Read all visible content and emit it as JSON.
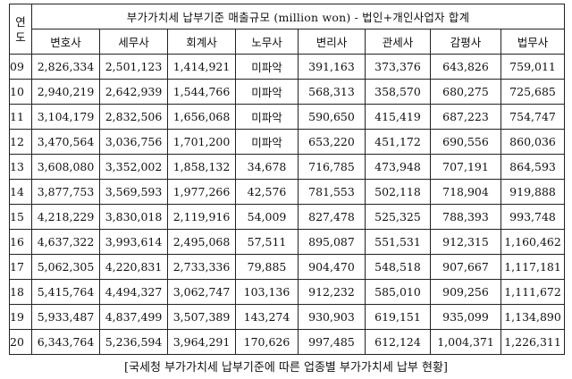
{
  "table": {
    "corner_label_1": "연",
    "corner_label_2": "도",
    "title": "부가가치세 납부기준 매출규모 (million won) - 법인+개인사업자 합계",
    "columns": [
      "변호사",
      "세무사",
      "회계사",
      "노무사",
      "변리사",
      "관세사",
      "감평사",
      "법무사"
    ],
    "rows": [
      {
        "year": "09",
        "values": [
          "2,826,334",
          "2,501,123",
          "1,414,921",
          "미파악",
          "391,163",
          "373,376",
          "643,826",
          "759,011"
        ]
      },
      {
        "year": "10",
        "values": [
          "2,940,219",
          "2,642,939",
          "1,544,766",
          "미파악",
          "568,313",
          "358,570",
          "680,275",
          "725,685"
        ]
      },
      {
        "year": "11",
        "values": [
          "3,104,179",
          "2,832,506",
          "1,656,068",
          "미파악",
          "590,650",
          "415,419",
          "687,223",
          "754,747"
        ]
      },
      {
        "year": "12",
        "values": [
          "3,470,564",
          "3,036,756",
          "1,701,200",
          "미파악",
          "653,220",
          "451,172",
          "690,556",
          "860,036"
        ]
      },
      {
        "year": "13",
        "values": [
          "3,608,080",
          "3,352,002",
          "1,858,132",
          "34,678",
          "716,785",
          "473,948",
          "707,191",
          "864,593"
        ]
      },
      {
        "year": "14",
        "values": [
          "3,877,753",
          "3,569,593",
          "1,977,266",
          "42,576",
          "781,553",
          "502,118",
          "718,904",
          "919,888"
        ]
      },
      {
        "year": "15",
        "values": [
          "4,218,229",
          "3,830,018",
          "2,119,916",
          "54,009",
          "827,478",
          "525,325",
          "788,393",
          "993,748"
        ]
      },
      {
        "year": "16",
        "values": [
          "4,637,322",
          "3,993,614",
          "2,495,068",
          "57,511",
          "895,087",
          "551,531",
          "912,315",
          "1,160,462"
        ]
      },
      {
        "year": "17",
        "values": [
          "5,062,305",
          "4,220,831",
          "2,733,336",
          "79,885",
          "904,470",
          "548,518",
          "907,667",
          "1,117,181"
        ]
      },
      {
        "year": "18",
        "values": [
          "5,415,764",
          "4,494,327",
          "3,062,747",
          "103,136",
          "912,232",
          "585,010",
          "909,256",
          "1,111,672"
        ]
      },
      {
        "year": "19",
        "values": [
          "5,933,487",
          "4,837,499",
          "3,507,389",
          "143,274",
          "930,903",
          "619,151",
          "935,099",
          "1,134,890"
        ]
      },
      {
        "year": "20",
        "values": [
          "6,343,764",
          "5,236,594",
          "3,964,291",
          "170,626",
          "997,485",
          "612,124",
          "1,004,371",
          "1,226,311"
        ]
      }
    ]
  },
  "caption": "[국세청 부가가치세 납부기준에 따른 업종별 부가가치세 납부 현황]"
}
